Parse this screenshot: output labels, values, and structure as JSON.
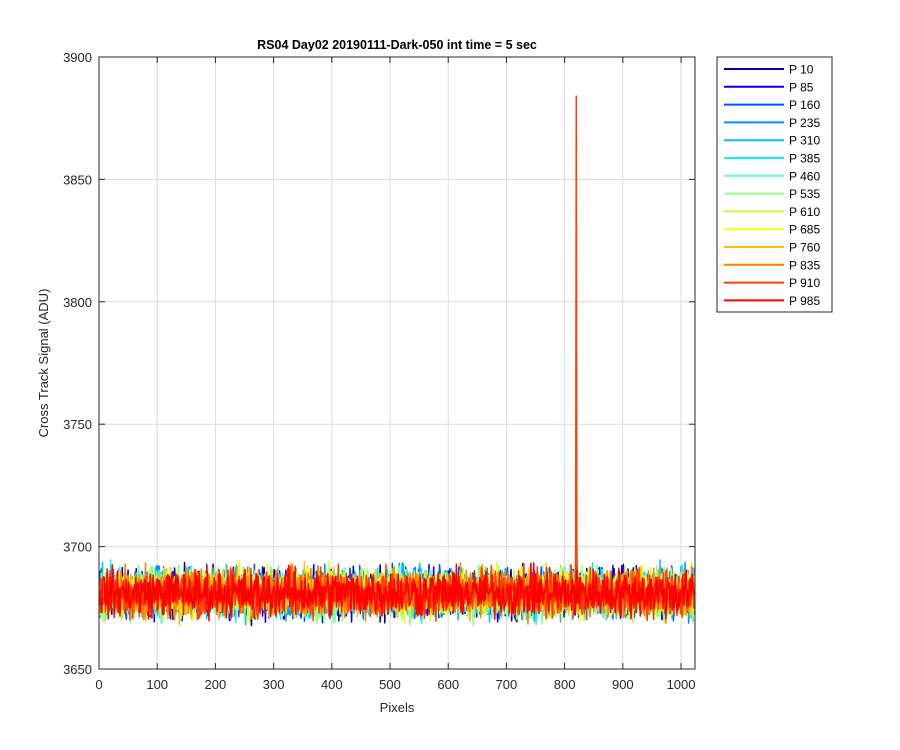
{
  "chart_data": {
    "type": "line",
    "title": "RS04 Day02 20190111-Dark-050 int time = 5 sec",
    "xlabel": "Pixels",
    "ylabel": "Cross Track Signal (ADU)",
    "xlim": [
      0,
      1024
    ],
    "ylim": [
      3650,
      3900
    ],
    "xticks": [
      0,
      100,
      200,
      300,
      400,
      500,
      600,
      700,
      800,
      900,
      1000
    ],
    "yticks": [
      3650,
      3700,
      3750,
      3800,
      3850,
      3900
    ],
    "grid": true,
    "legend_position": "outside-top-right",
    "series_approximation": {
      "x_start": 1,
      "x_end": 1024,
      "x_step": 1,
      "baseline_mean": 3681,
      "noise_half_range": 14
    },
    "spike": {
      "series": "P 910",
      "x": 820,
      "y": 3884
    },
    "series": [
      {
        "name": "P 10",
        "color": "#00008f"
      },
      {
        "name": "P 85",
        "color": "#0000ef"
      },
      {
        "name": "P 160",
        "color": "#0050ff"
      },
      {
        "name": "P 235",
        "color": "#0090ff"
      },
      {
        "name": "P 310",
        "color": "#00c0ff"
      },
      {
        "name": "P 385",
        "color": "#10f0f0"
      },
      {
        "name": "P 460",
        "color": "#60ffd0"
      },
      {
        "name": "P 535",
        "color": "#90ff90"
      },
      {
        "name": "P 610",
        "color": "#c0ff40"
      },
      {
        "name": "P 685",
        "color": "#f0ff10"
      },
      {
        "name": "P 760",
        "color": "#ffc000"
      },
      {
        "name": "P 835",
        "color": "#ff8000"
      },
      {
        "name": "P 910",
        "color": "#ff4000"
      },
      {
        "name": "P 985",
        "color": "#ff0000"
      }
    ]
  }
}
